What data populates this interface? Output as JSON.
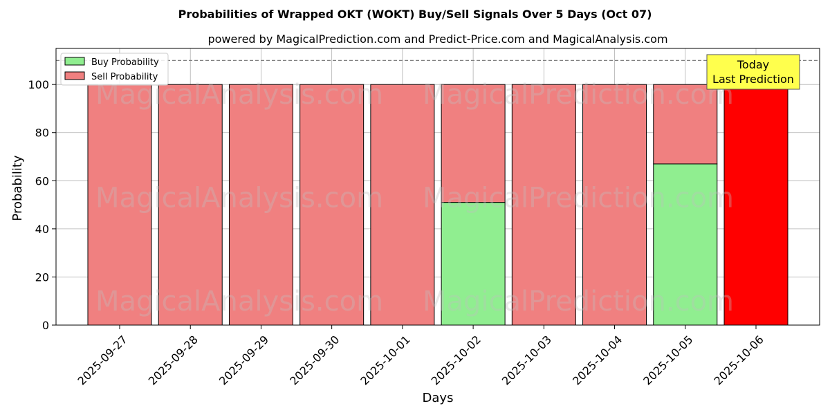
{
  "chart_data": {
    "type": "bar",
    "stacked": true,
    "title": "Probabilities of Wrapped OKT (WOKT) Buy/Sell Signals Over 5 Days (Oct 07)",
    "subtitle": "powered by MagicalPrediction.com and Predict-Price.com and MagicalAnalysis.com",
    "xlabel": "Days",
    "ylabel": "Probability",
    "ylim": [
      0,
      115
    ],
    "yticks": [
      0,
      20,
      40,
      60,
      80,
      100
    ],
    "categories": [
      "2025-09-27",
      "2025-09-28",
      "2025-09-29",
      "2025-09-30",
      "2025-10-01",
      "2025-10-02",
      "2025-10-03",
      "2025-10-04",
      "2025-10-05",
      "2025-10-06"
    ],
    "series": [
      {
        "name": "Buy Probability",
        "color": "#90ee90",
        "values": [
          0,
          0,
          0,
          0,
          0,
          51,
          0,
          0,
          67,
          0
        ]
      },
      {
        "name": "Sell Probability",
        "color": "#f08080",
        "values": [
          100,
          100,
          100,
          100,
          100,
          49,
          100,
          100,
          33,
          100
        ]
      }
    ],
    "highlight": {
      "index": 9,
      "color": "#ff0000"
    },
    "reference_line": {
      "y": 110,
      "style": "dashed",
      "color": "#808080"
    },
    "annotation": {
      "lines": [
        "Today",
        "Last Prediction"
      ],
      "background": "#ffff4d"
    },
    "legend": {
      "placement": "top-left"
    },
    "grid": true,
    "watermarks": [
      "MagicalAnalysis.com",
      "MagicalPrediction.com"
    ]
  }
}
